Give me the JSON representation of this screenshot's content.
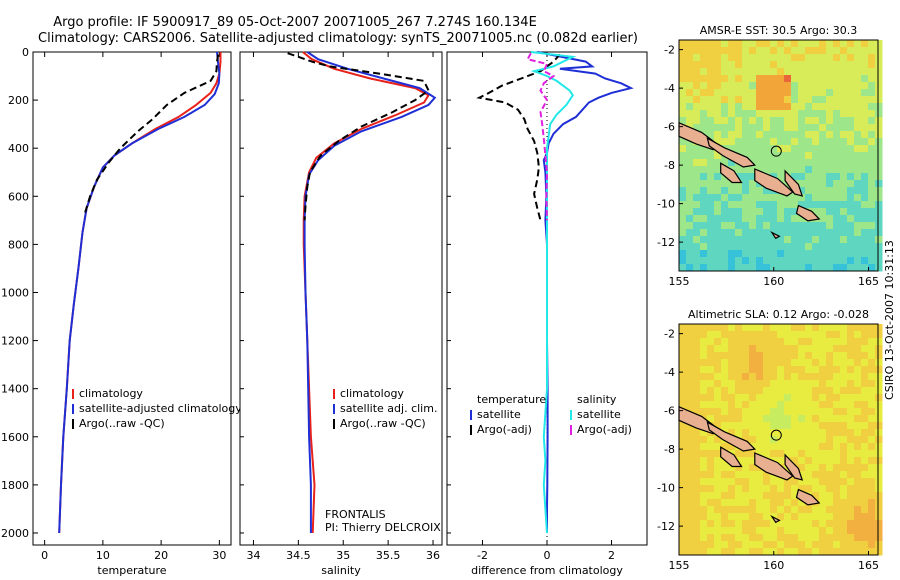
{
  "header": {
    "line1": "Argo profile: IF 5900917_89 05-Oct-2007 20071005_267 7.274S 160.134E",
    "line2": "Climatology: CARS2006. Satellite-adjusted climatology: synTS_20071005.nc (0.082d earlier)"
  },
  "colors": {
    "climatology": "#e8221b",
    "satellite": "#1f2fd6",
    "argo": "#000000",
    "sal_satellite": "#22e8e8",
    "sal_argo": "#e020e0"
  },
  "chart_data": [
    {
      "type": "line",
      "id": "temperature",
      "xlabel": "temperature",
      "xlim": [
        -2,
        32
      ],
      "ylim": [
        0,
        2050
      ],
      "xticks": [
        0,
        10,
        20,
        30
      ],
      "yticks": [
        0,
        200,
        400,
        600,
        800,
        1000,
        1200,
        1400,
        1600,
        1800,
        2000
      ],
      "legend": [
        "climatology",
        "satellite-adjusted climatology",
        "Argo(..raw -QC)"
      ],
      "series": [
        {
          "name": "climatology",
          "color": "#e8221b",
          "dash": "",
          "points": [
            [
              30.2,
              0
            ],
            [
              30.2,
              40
            ],
            [
              30,
              90
            ],
            [
              29.5,
              130
            ],
            [
              28.5,
              170
            ],
            [
              26,
              220
            ],
            [
              23,
              270
            ],
            [
              19,
              320
            ],
            [
              15,
              380
            ],
            [
              12,
              430
            ],
            [
              10,
              480
            ],
            [
              8.5,
              560
            ],
            [
              7.2,
              650
            ],
            [
              6.5,
              750
            ],
            [
              5.8,
              900
            ],
            [
              5,
              1050
            ],
            [
              4.3,
              1200
            ],
            [
              3.8,
              1400
            ],
            [
              3.2,
              1600
            ],
            [
              2.8,
              1800
            ],
            [
              2.5,
              2000
            ]
          ]
        },
        {
          "name": "satellite-adjusted climatology",
          "color": "#1f2fd6",
          "dash": "",
          "points": [
            [
              29.6,
              0
            ],
            [
              29.8,
              50
            ],
            [
              30,
              90
            ],
            [
              29.9,
              130
            ],
            [
              29.2,
              175
            ],
            [
              27.5,
              220
            ],
            [
              24,
              270
            ],
            [
              19.5,
              320
            ],
            [
              15,
              380
            ],
            [
              12,
              430
            ],
            [
              10,
              480
            ],
            [
              8.5,
              560
            ],
            [
              7.2,
              650
            ],
            [
              6.5,
              750
            ],
            [
              5.8,
              900
            ],
            [
              5,
              1050
            ],
            [
              4.3,
              1200
            ],
            [
              3.8,
              1400
            ],
            [
              3.2,
              1600
            ],
            [
              2.8,
              1800
            ],
            [
              2.5,
              2000
            ]
          ]
        },
        {
          "name": "Argo(..raw -QC)",
          "color": "#000000",
          "dash": "7,4",
          "points": [
            [
              29.8,
              10
            ],
            [
              29.6,
              40
            ],
            [
              29.5,
              80
            ],
            [
              28.5,
              120
            ],
            [
              24,
              170
            ],
            [
              21,
              220
            ],
            [
              18.5,
              280
            ],
            [
              16,
              330
            ],
            [
              13,
              400
            ],
            [
              11,
              460
            ],
            [
              9,
              530
            ],
            [
              7.8,
              600
            ],
            [
              6.8,
              680
            ]
          ]
        }
      ]
    },
    {
      "type": "line",
      "id": "salinity",
      "xlabel": "salinity",
      "xlim": [
        33.85,
        36.1
      ],
      "ylim": [
        0,
        2050
      ],
      "xticks": [
        34,
        34.5,
        35,
        35.5,
        36
      ],
      "yticks": [],
      "legend": [
        "climatology",
        "satellite adj. clim.",
        "Argo(..raw -QC)"
      ],
      "annotation": [
        "FRONTALIS",
        "PI: Thierry DELCROIX"
      ],
      "series": [
        {
          "name": "climatology",
          "color": "#e8221b",
          "dash": "",
          "points": [
            [
              34.55,
              0
            ],
            [
              34.65,
              30
            ],
            [
              34.9,
              70
            ],
            [
              35.3,
              110
            ],
            [
              35.8,
              150
            ],
            [
              35.95,
              180
            ],
            [
              35.9,
              210
            ],
            [
              35.6,
              260
            ],
            [
              35.2,
              320
            ],
            [
              34.9,
              380
            ],
            [
              34.7,
              440
            ],
            [
              34.62,
              500
            ],
            [
              34.57,
              600
            ],
            [
              34.56,
              700
            ],
            [
              34.56,
              800
            ],
            [
              34.58,
              1000
            ],
            [
              34.6,
              1200
            ],
            [
              34.62,
              1400
            ],
            [
              34.64,
              1600
            ],
            [
              34.66,
              1700
            ],
            [
              34.68,
              1800
            ],
            [
              34.67,
              1900
            ],
            [
              34.66,
              2000
            ]
          ]
        },
        {
          "name": "satellite adj. clim.",
          "color": "#1f2fd6",
          "dash": "",
          "points": [
            [
              34.6,
              0
            ],
            [
              34.72,
              30
            ],
            [
              35.05,
              70
            ],
            [
              35.45,
              110
            ],
            [
              35.85,
              150
            ],
            [
              36.02,
              190
            ],
            [
              35.95,
              220
            ],
            [
              35.65,
              270
            ],
            [
              35.2,
              330
            ],
            [
              34.9,
              390
            ],
            [
              34.72,
              450
            ],
            [
              34.62,
              510
            ],
            [
              34.58,
              600
            ],
            [
              34.57,
              700
            ],
            [
              34.57,
              800
            ],
            [
              34.58,
              1000
            ],
            [
              34.6,
              1200
            ],
            [
              34.61,
              1400
            ],
            [
              34.62,
              1600
            ],
            [
              34.63,
              1700
            ],
            [
              34.64,
              1800
            ],
            [
              34.64,
              1900
            ],
            [
              34.64,
              2000
            ]
          ]
        },
        {
          "name": "Argo(..raw -QC)",
          "color": "#000000",
          "dash": "7,4",
          "points": [
            [
              34.38,
              5
            ],
            [
              34.5,
              20
            ],
            [
              34.65,
              40
            ],
            [
              34.85,
              60
            ],
            [
              35.4,
              90
            ],
            [
              35.9,
              120
            ],
            [
              35.95,
              160
            ],
            [
              35.8,
              200
            ],
            [
              35.55,
              250
            ],
            [
              35.2,
              310
            ],
            [
              34.95,
              370
            ],
            [
              34.75,
              430
            ],
            [
              34.63,
              500
            ],
            [
              34.6,
              560
            ],
            [
              34.58,
              640
            ],
            [
              34.57,
              700
            ]
          ]
        }
      ]
    },
    {
      "type": "line",
      "id": "difference",
      "xlabel": "difference from climatology",
      "xlim": [
        -3.1,
        3.1
      ],
      "ylim": [
        0,
        2050
      ],
      "xticks": [
        -2,
        0,
        2
      ],
      "yticks": [],
      "legend_headers": [
        "temperature",
        "salinity"
      ],
      "legend": [
        "satellite",
        "Argo(-adj)",
        "satellite",
        "Argo(-adj)"
      ],
      "series": [
        {
          "name": "temperature satellite",
          "color": "#1f2fd6",
          "dash": "",
          "points": [
            [
              -0.3,
              0
            ],
            [
              1.2,
              40
            ],
            [
              1.4,
              60
            ],
            [
              0.4,
              70
            ],
            [
              1.5,
              90
            ],
            [
              1.8,
              110
            ],
            [
              2.3,
              130
            ],
            [
              2.6,
              150
            ],
            [
              2,
              170
            ],
            [
              1.6,
              190
            ],
            [
              1.3,
              210
            ],
            [
              1.1,
              240
            ],
            [
              0.9,
              270
            ],
            [
              0.5,
              300
            ],
            [
              0.2,
              340
            ],
            [
              0.05,
              380
            ],
            [
              0,
              420
            ],
            [
              -0.1,
              450
            ],
            [
              -0.05,
              500
            ],
            [
              -0.02,
              600
            ],
            [
              -0.05,
              700
            ],
            [
              0,
              800
            ],
            [
              0,
              1000
            ],
            [
              0,
              1200
            ],
            [
              0.02,
              1400
            ],
            [
              0.02,
              1600
            ],
            [
              0.01,
              1800
            ],
            [
              0,
              1900
            ],
            [
              0,
              2000
            ]
          ]
        },
        {
          "name": "temperature Argo(-adj)",
          "color": "#000000",
          "dash": "7,4",
          "points": [
            [
              0.4,
              10
            ],
            [
              0.2,
              40
            ],
            [
              -0.2,
              80
            ],
            [
              -0.8,
              110
            ],
            [
              -1.4,
              140
            ],
            [
              -1.8,
              170
            ],
            [
              -2.1,
              190
            ],
            [
              -1.3,
              210
            ],
            [
              -0.9,
              240
            ],
            [
              -0.7,
              280
            ],
            [
              -0.6,
              320
            ],
            [
              -0.4,
              370
            ],
            [
              -0.3,
              420
            ],
            [
              -0.25,
              480
            ],
            [
              -0.3,
              530
            ],
            [
              -0.4,
              590
            ],
            [
              -0.3,
              650
            ],
            [
              -0.2,
              700
            ]
          ]
        },
        {
          "name": "salinity satellite",
          "color": "#22e8e8",
          "dash": "",
          "points": [
            [
              -0.5,
              0
            ],
            [
              0.8,
              20
            ],
            [
              0.5,
              40
            ],
            [
              0.2,
              60
            ],
            [
              -0.4,
              80
            ],
            [
              0,
              100
            ],
            [
              0.3,
              120
            ],
            [
              0.5,
              140
            ],
            [
              0.7,
              160
            ],
            [
              0.8,
              180
            ],
            [
              0.6,
              220
            ],
            [
              0.3,
              260
            ],
            [
              0.1,
              300
            ],
            [
              0,
              400
            ],
            [
              0,
              600
            ],
            [
              0,
              800
            ],
            [
              0,
              1000
            ],
            [
              0,
              1200
            ],
            [
              0,
              1400
            ],
            [
              -0.05,
              1500
            ],
            [
              -0.1,
              1600
            ],
            [
              -0.05,
              1700
            ],
            [
              -0.1,
              1800
            ],
            [
              -0.05,
              1900
            ],
            [
              0,
              2000
            ]
          ]
        },
        {
          "name": "salinity Argo(-adj)",
          "color": "#e020e0",
          "dash": "6,3",
          "points": [
            [
              -0.5,
              5
            ],
            [
              -0.6,
              30
            ],
            [
              0,
              50
            ],
            [
              -0.1,
              80
            ],
            [
              0.2,
              100
            ],
            [
              -0.1,
              130
            ],
            [
              -0.2,
              160
            ],
            [
              0,
              200
            ],
            [
              -0.2,
              250
            ],
            [
              -0.15,
              300
            ],
            [
              -0.1,
              360
            ],
            [
              -0.05,
              430
            ],
            [
              0,
              500
            ],
            [
              -0.02,
              600
            ],
            [
              0,
              700
            ]
          ]
        }
      ]
    },
    {
      "type": "heatmap",
      "id": "sst_map",
      "title": "AMSR-E SST: 30.5 Argo: 30.3",
      "xlim": [
        155,
        165.5
      ],
      "ylim": [
        -13.5,
        -1.5
      ],
      "xticks": [
        155,
        160,
        165
      ],
      "yticks": [
        -2,
        -4,
        -6,
        -8,
        -10,
        -12
      ],
      "marker": {
        "lon": 160.134,
        "lat": -7.274
      }
    },
    {
      "type": "heatmap",
      "id": "sla_map",
      "title": "Altimetric SLA: 0.12 Argo: -0.028",
      "xlim": [
        155,
        165.5
      ],
      "ylim": [
        -13.5,
        -1.5
      ],
      "xticks": [
        155,
        160,
        165
      ],
      "yticks": [
        -2,
        -4,
        -6,
        -8,
        -10,
        -12
      ],
      "marker": {
        "lon": 160.134,
        "lat": -7.274
      }
    }
  ],
  "footer": {
    "side_label": "CSIRO 13-Oct-2007 10:31:13"
  }
}
